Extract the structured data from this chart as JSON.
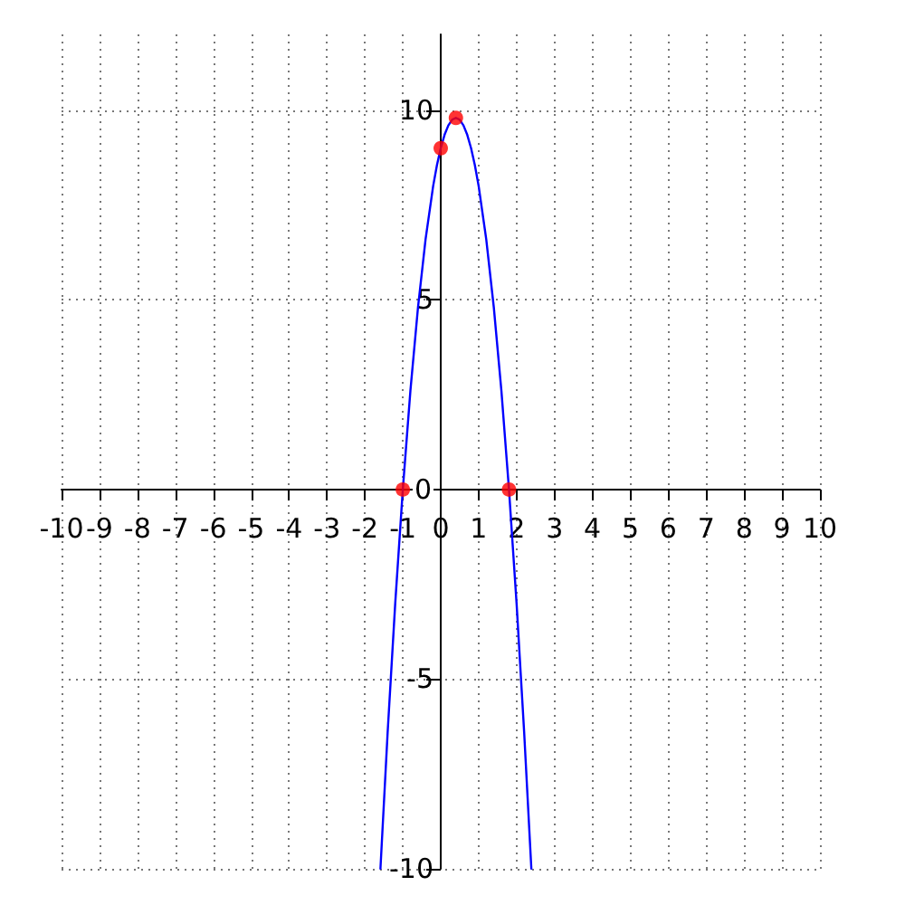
{
  "chart_data": {
    "type": "line",
    "xlim": [
      -10,
      10
    ],
    "xticks": [
      -10,
      -9,
      -8,
      -7,
      -6,
      -5,
      -4,
      -3,
      -2,
      -1,
      0,
      1,
      2,
      3,
      4,
      5,
      6,
      7,
      8,
      9,
      10
    ],
    "ylim": [
      -10,
      12
    ],
    "yticks": [
      -10,
      -5,
      0,
      5,
      10
    ],
    "grid": true,
    "series": [
      {
        "color": "#0000ff",
        "marker": "none",
        "line_style": "solid",
        "x": [
          -1.59,
          -1.4,
          -1.2,
          -1,
          -0.8,
          -0.6,
          -0.4,
          -0.2,
          -0.1,
          0,
          0.1,
          0.2,
          0.3,
          0.4,
          0.5,
          0.6,
          0.7,
          0.8,
          0.9,
          1,
          1.2,
          1.4,
          1.6,
          1.8,
          2,
          2.2,
          2.39
        ],
        "values": [
          -10,
          -6.4,
          -3,
          0,
          2.6,
          4.8,
          6.6,
          8,
          8.55,
          9,
          9.35,
          9.6,
          9.75,
          9.8,
          9.75,
          9.6,
          9.35,
          9,
          8.55,
          8,
          6.6,
          4.8,
          2.6,
          0,
          -3,
          -6.4,
          -10
        ]
      },
      {
        "type": "scatter",
        "color": "#ff0000",
        "marker": "circle",
        "x": [
          -1,
          0,
          0.4,
          1.8
        ],
        "values": [
          0,
          9,
          9.8,
          0
        ]
      }
    ]
  }
}
